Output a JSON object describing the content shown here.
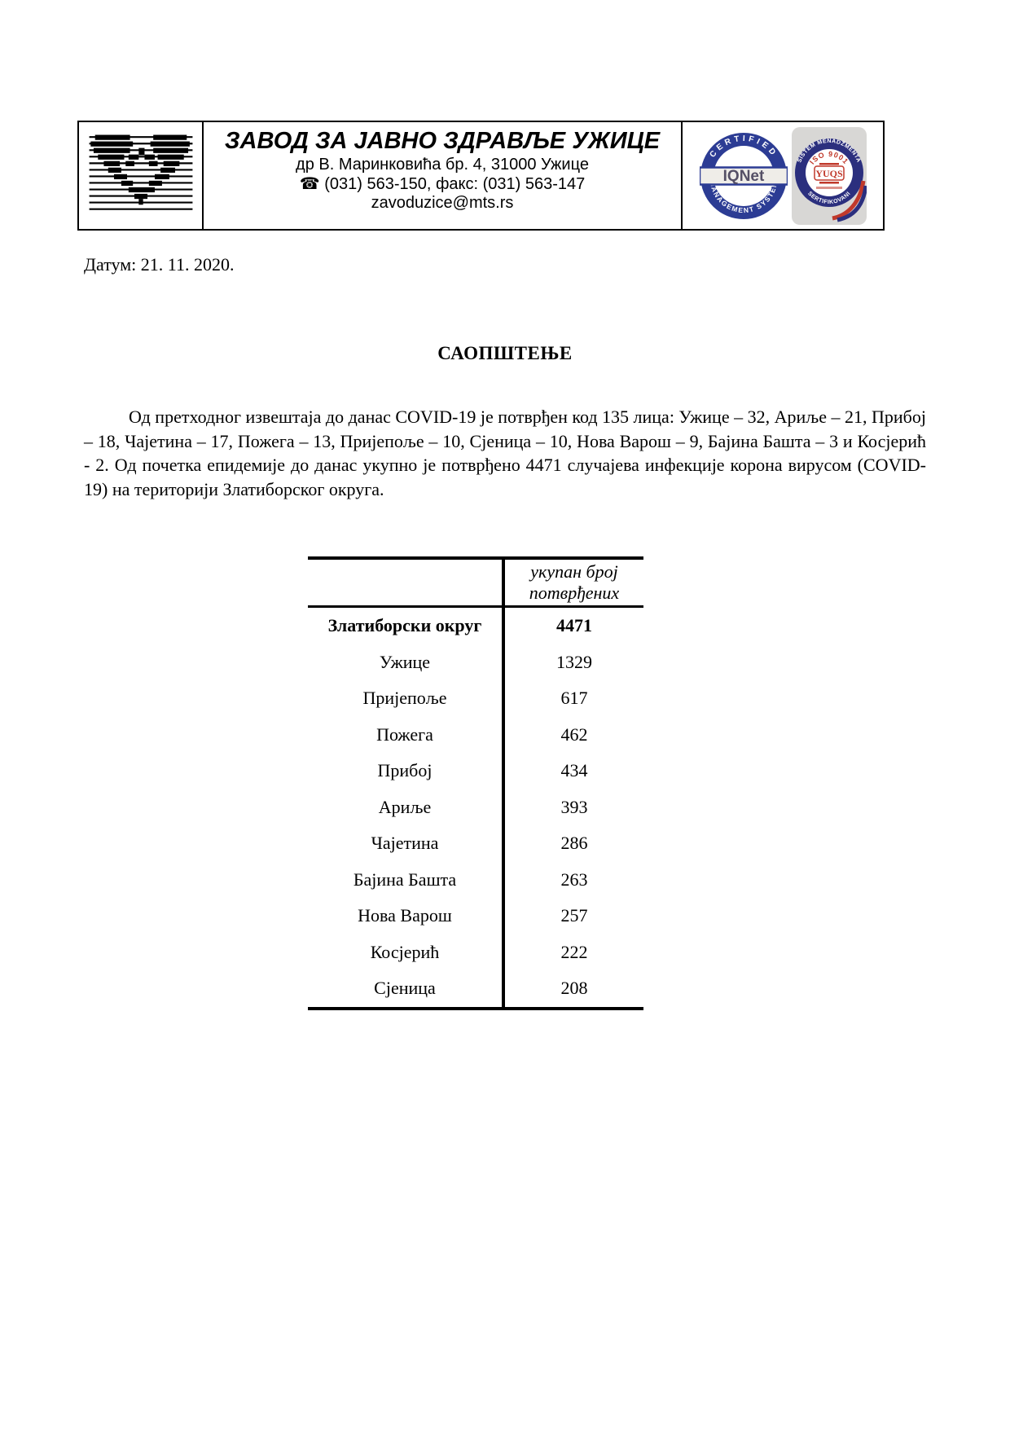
{
  "letterhead": {
    "org_name": "ЗАВОД ЗА ЈАВНО ЗДРАВЉЕ УЖИЦЕ",
    "address": "др В. Маринковића бр. 4, 31000 Ужице",
    "phone_icon": "☎",
    "phone_fax": "(031) 563-150, факс: (031) 563-147",
    "email": "zavoduzice@mts.rs",
    "iqnet_seal": {
      "top_text": "CERTIFIED",
      "center_text": "IQNet",
      "bottom_text": "MANAGEMENT SYSTEM",
      "ring_color": "#2c3c94"
    },
    "yuqs_seal": {
      "ring_text_top": "SERTIFIKOVANI SISTEM MENADŽMENTA",
      "iso_text": "ISO 9001",
      "center_text": "YUQS",
      "ring_color": "#2b2f7e",
      "accent_color": "#c0392b"
    }
  },
  "date_line": "Датум: 21. 11. 2020.",
  "title": "САОПШТЕЊЕ",
  "paragraph": "Од претходног извештаја до данас COVID-19 је потврђен код 135 лица: Ужице – 32, Ариље – 21, Прибој – 18, Чајетина – 17, Пожега – 13, Пријепоље – 10, Сјеница – 10, Нова Варош – 9, Бајина Башта – 3 и Косјерић - 2. Од почетка епидемије до данас укупно је потврђено 4471 случајева инфекције корона вирусом (COVID-19) на територији Златиборског округа.",
  "table": {
    "col_header": "укупан број потврђених",
    "rows": [
      {
        "label": "Златиборски округ",
        "value": "4471",
        "total": true
      },
      {
        "label": "Ужице",
        "value": "1329"
      },
      {
        "label": "Пријепоље",
        "value": "617"
      },
      {
        "label": "Пожега",
        "value": "462"
      },
      {
        "label": "Прибој",
        "value": "434"
      },
      {
        "label": "Ариље",
        "value": "393"
      },
      {
        "label": "Чајетина",
        "value": "286"
      },
      {
        "label": "Бајина Башта",
        "value": "263"
      },
      {
        "label": "Нова Варош",
        "value": "257"
      },
      {
        "label": "Косјерић",
        "value": "222"
      },
      {
        "label": "Сјеница",
        "value": "208"
      }
    ]
  }
}
